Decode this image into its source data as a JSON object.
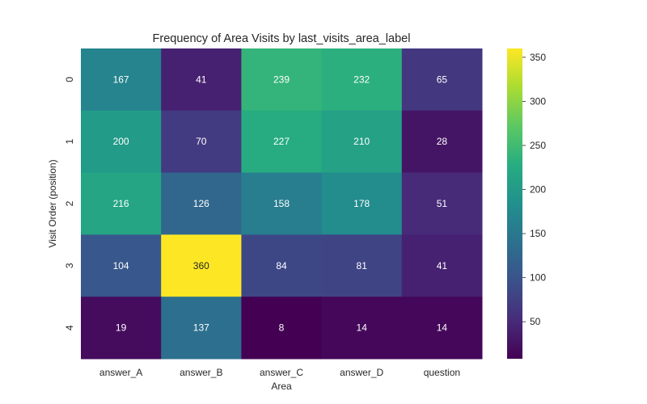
{
  "chart_data": {
    "type": "heatmap",
    "title": "Frequency of Area Visits by last_visits_area_label",
    "xlabel": "Area",
    "ylabel": "Visit Order (position)",
    "x_categories": [
      "answer_A",
      "answer_B",
      "answer_C",
      "answer_D",
      "question"
    ],
    "y_categories": [
      "0",
      "1",
      "2",
      "3",
      "4"
    ],
    "values": [
      [
        167,
        41,
        239,
        232,
        65
      ],
      [
        200,
        70,
        227,
        210,
        28
      ],
      [
        216,
        126,
        158,
        178,
        51
      ],
      [
        104,
        360,
        84,
        81,
        41
      ],
      [
        19,
        137,
        8,
        14,
        14
      ]
    ],
    "colormap": "viridis",
    "value_range": [
      8,
      360
    ],
    "colorbar_ticks": [
      50,
      100,
      150,
      200,
      250,
      300,
      350
    ],
    "colorbar": true,
    "grid": false
  }
}
